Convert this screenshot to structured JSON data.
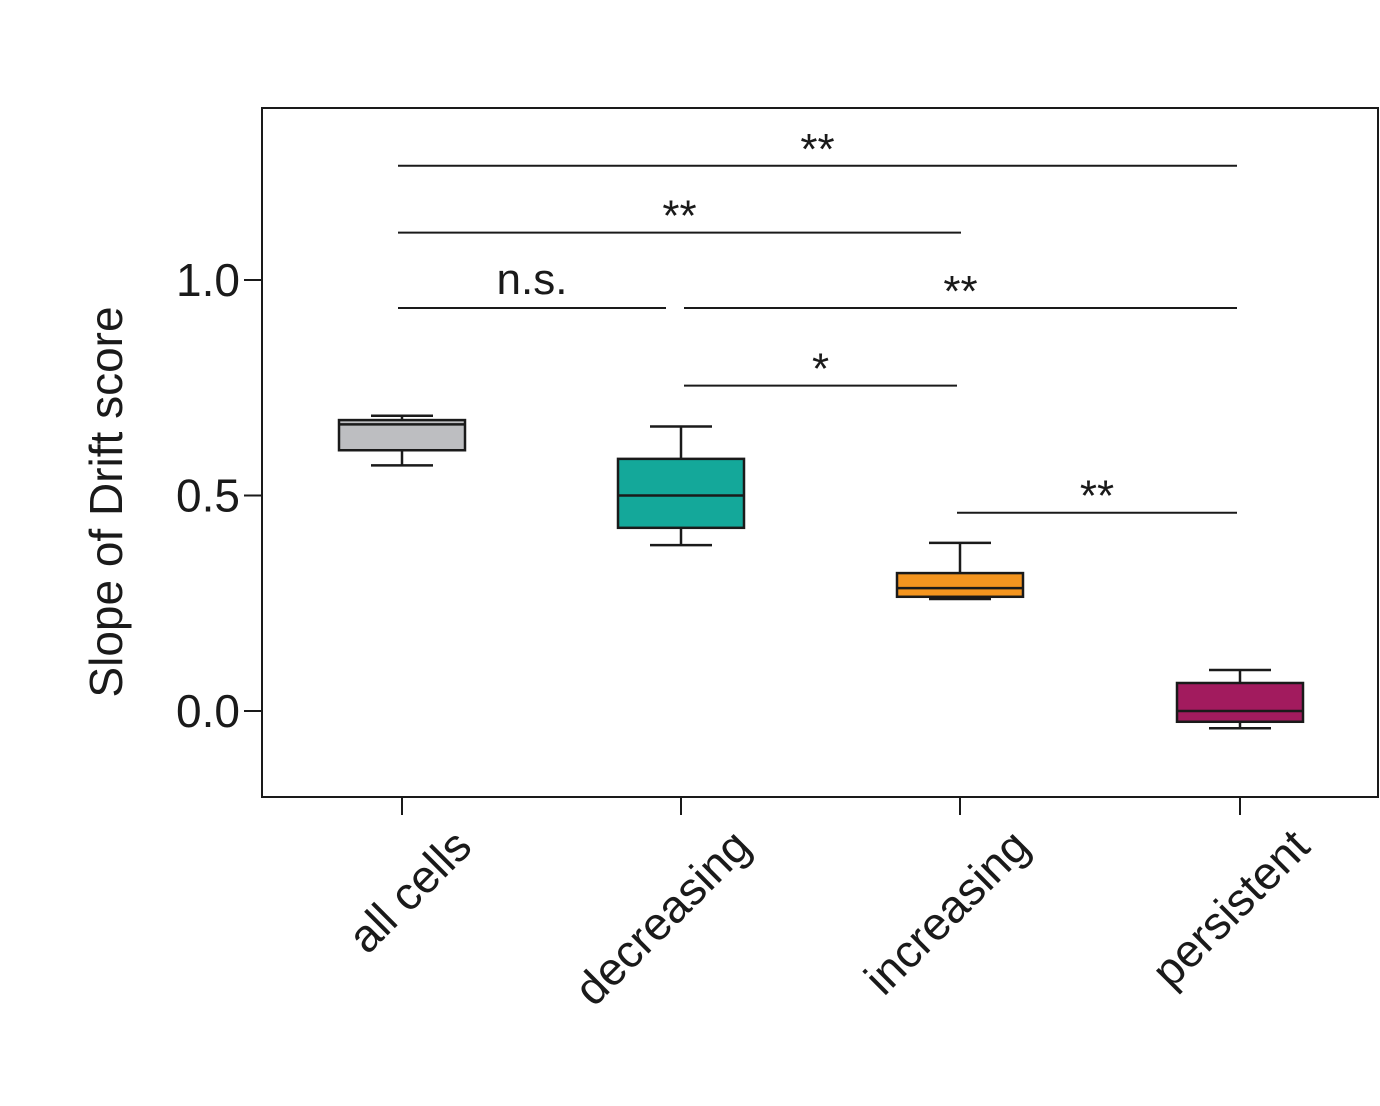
{
  "chart_data": {
    "type": "box",
    "ylabel": "Slope of Drift score",
    "xlabel": "",
    "title": "",
    "ylim": [
      -0.2,
      1.4
    ],
    "yticks": [
      0.0,
      0.5,
      1.0
    ],
    "ytick_labels": [
      "0.0",
      "0.5",
      "1.0"
    ],
    "grid": false,
    "categories": [
      "all cells",
      "decreasing",
      "increasing",
      "persistent"
    ],
    "boxes": [
      {
        "category": "all cells",
        "whisker_low": 0.57,
        "q1": 0.605,
        "median": 0.665,
        "q3": 0.675,
        "whisker_high": 0.685,
        "color": "#bdbec1"
      },
      {
        "category": "decreasing",
        "whisker_low": 0.385,
        "q1": 0.425,
        "median": 0.5,
        "q3": 0.585,
        "whisker_high": 0.66,
        "color": "#14a89a"
      },
      {
        "category": "increasing",
        "whisker_low": 0.26,
        "q1": 0.265,
        "median": 0.285,
        "q3": 0.32,
        "whisker_high": 0.39,
        "color": "#f4951f"
      },
      {
        "category": "persistent",
        "whisker_low": -0.04,
        "q1": -0.025,
        "median": 0.0,
        "q3": 0.065,
        "whisker_high": 0.095,
        "color": "#a21b5e"
      }
    ],
    "significance": [
      {
        "from": "all cells",
        "to": "persistent",
        "y": 1.265,
        "label": "**"
      },
      {
        "from": "all cells",
        "to": "increasing",
        "y": 1.11,
        "label": "**"
      },
      {
        "from": "all cells",
        "to": "decreasing",
        "y": 0.935,
        "label": "n.s."
      },
      {
        "from": "decreasing",
        "to": "persistent",
        "y": 0.935,
        "label": "**"
      },
      {
        "from": "decreasing",
        "to": "increasing",
        "y": 0.755,
        "label": "*"
      },
      {
        "from": "increasing",
        "to": "persistent",
        "y": 0.46,
        "label": "**"
      }
    ]
  }
}
